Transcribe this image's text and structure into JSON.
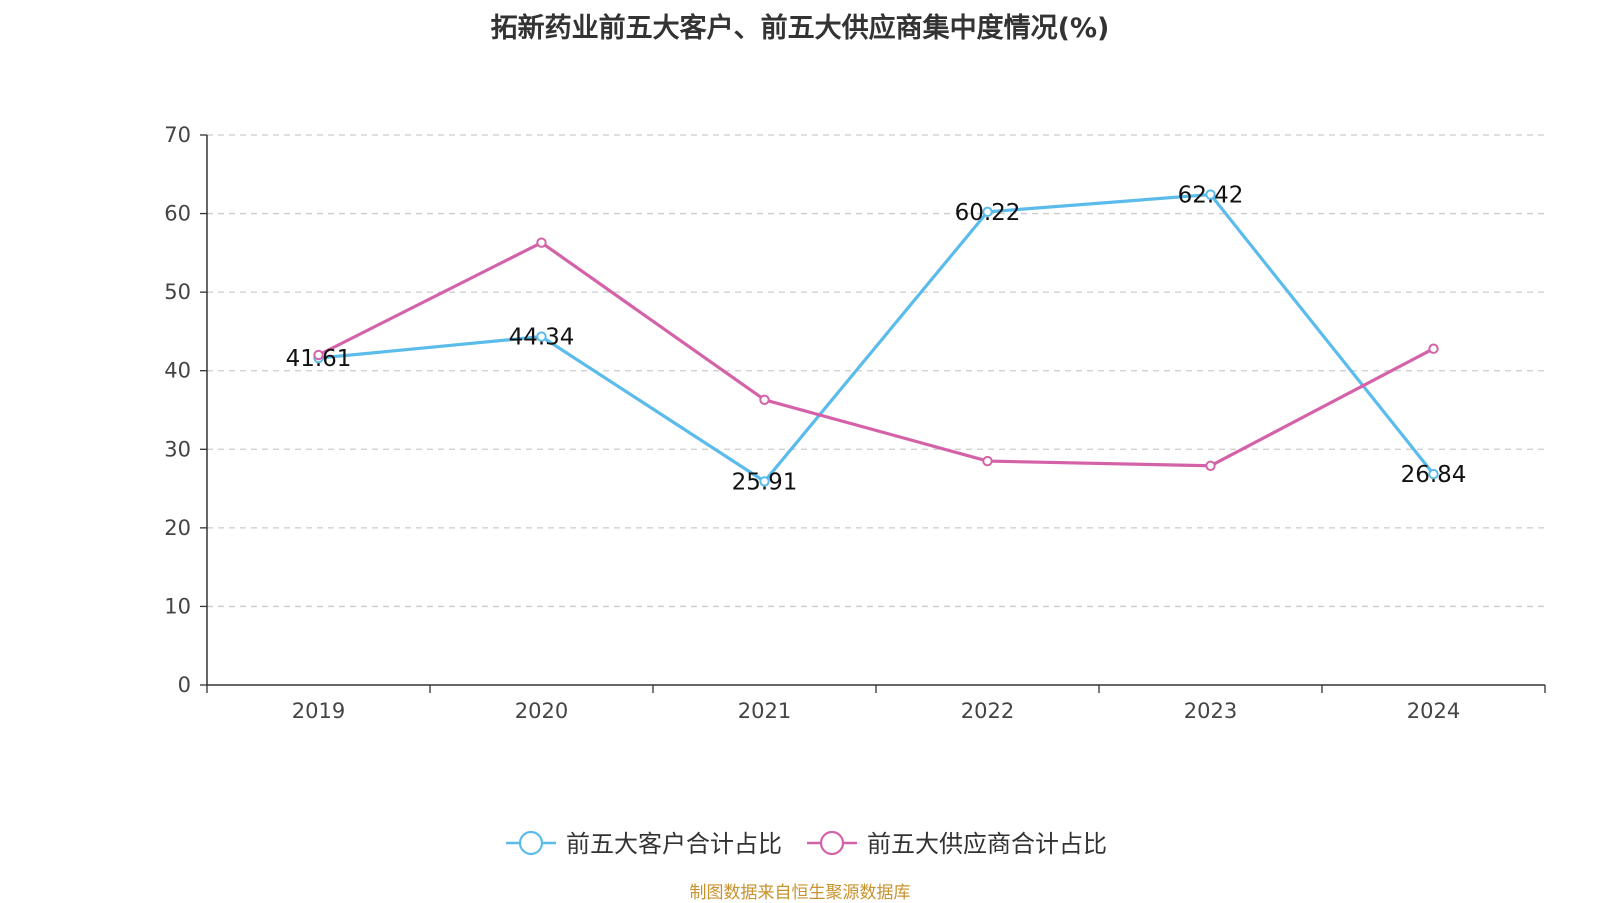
{
  "title": "拓新药业前五大客户、前五大供应商集中度情况(%)",
  "source": "制图数据来自恒生聚源数据库",
  "chart_data": {
    "type": "line",
    "title": "拓新药业前五大客户、前五大供应商集中度情况(%)",
    "categories": [
      "2019",
      "2020",
      "2021",
      "2022",
      "2023",
      "2024"
    ],
    "ylim": [
      0,
      70
    ],
    "yticks": [
      0,
      10,
      20,
      30,
      40,
      50,
      60,
      70
    ],
    "grid": true,
    "legend_position": "bottom",
    "series": [
      {
        "name": "前五大客户合计占比",
        "color": "#5bbcec",
        "values": [
          41.61,
          44.34,
          25.91,
          60.22,
          62.42,
          26.84
        ],
        "labels": [
          "41.61",
          "44.34",
          "25.91",
          "60.22",
          "62.42",
          "26.84"
        ]
      },
      {
        "name": "前五大供应商合计占比",
        "color": "#d462a8",
        "values": [
          42.0,
          56.3,
          36.3,
          28.5,
          27.9,
          42.8
        ]
      }
    ]
  }
}
